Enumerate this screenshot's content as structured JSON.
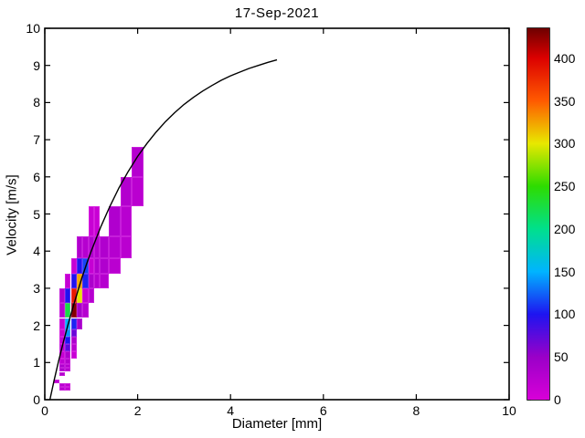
{
  "chart_data": {
    "type": "heatmap",
    "title": "17-Sep-2021",
    "xlabel": "Diameter [mm]",
    "ylabel": "Velocity [m/s]",
    "xlim": [
      0,
      10
    ],
    "ylim": [
      0,
      10
    ],
    "x_ticks": [
      0,
      2,
      4,
      6,
      8,
      10
    ],
    "y_ticks": [
      0,
      1,
      2,
      3,
      4,
      5,
      6,
      7,
      8,
      9,
      10
    ],
    "grid": false,
    "legend": "none",
    "colorbar": {
      "position": "right",
      "min": 0,
      "max": 435,
      "ticks": [
        0,
        50,
        100,
        150,
        200,
        250,
        300,
        350,
        400
      ],
      "stops": [
        [
          0,
          "#d800d8"
        ],
        [
          50,
          "#9a00c8"
        ],
        [
          100,
          "#1e14f0"
        ],
        [
          150,
          "#00b4ff"
        ],
        [
          200,
          "#00e08c"
        ],
        [
          250,
          "#2edc00"
        ],
        [
          300,
          "#e8e800"
        ],
        [
          350,
          "#ff5a00"
        ],
        [
          400,
          "#dc0000"
        ],
        [
          435,
          "#6e0000"
        ]
      ]
    },
    "diameter_bin_edges": [
      0.062,
      0.187,
      0.312,
      0.437,
      0.562,
      0.687,
      0.812,
      0.937,
      1.062,
      1.187,
      1.375,
      1.625,
      1.875,
      2.125,
      2.375
    ],
    "velocity_bin_edges": [
      0.05,
      0.15,
      0.25,
      0.35,
      0.45,
      0.55,
      0.65,
      0.75,
      0.85,
      0.95,
      1.1,
      1.3,
      1.5,
      1.7,
      1.9,
      2.2,
      2.6,
      3.0,
      3.4,
      3.8,
      4.4,
      5.2,
      6.0,
      6.8
    ],
    "cells": [
      {
        "d": [
          0.187,
          0.312
        ],
        "v": [
          0.45,
          0.55
        ],
        "value": 22
      },
      {
        "d": [
          0.312,
          0.437
        ],
        "v": [
          0.25,
          0.35
        ],
        "value": 25
      },
      {
        "d": [
          0.437,
          0.562
        ],
        "v": [
          0.25,
          0.35
        ],
        "value": 20
      },
      {
        "d": [
          0.312,
          0.437
        ],
        "v": [
          0.35,
          0.45
        ],
        "value": 25
      },
      {
        "d": [
          0.437,
          0.562
        ],
        "v": [
          0.35,
          0.45
        ],
        "value": 20
      },
      {
        "d": [
          0.312,
          0.437
        ],
        "v": [
          0.65,
          0.75
        ],
        "value": 30
      },
      {
        "d": [
          0.312,
          0.437
        ],
        "v": [
          0.75,
          0.85
        ],
        "value": 35
      },
      {
        "d": [
          0.437,
          0.562
        ],
        "v": [
          0.75,
          0.85
        ],
        "value": 28
      },
      {
        "d": [
          0.312,
          0.437
        ],
        "v": [
          0.85,
          0.95
        ],
        "value": 35
      },
      {
        "d": [
          0.437,
          0.562
        ],
        "v": [
          0.85,
          0.95
        ],
        "value": 28
      },
      {
        "d": [
          0.312,
          0.437
        ],
        "v": [
          0.95,
          1.1
        ],
        "value": 20
      },
      {
        "d": [
          0.437,
          0.562
        ],
        "v": [
          0.95,
          1.1
        ],
        "value": 30
      },
      {
        "d": [
          0.312,
          0.437
        ],
        "v": [
          1.1,
          1.3
        ],
        "value": 15
      },
      {
        "d": [
          0.437,
          0.562
        ],
        "v": [
          1.1,
          1.3
        ],
        "value": 35
      },
      {
        "d": [
          0.562,
          0.687
        ],
        "v": [
          1.1,
          1.3
        ],
        "value": 14
      },
      {
        "d": [
          0.312,
          0.437
        ],
        "v": [
          1.3,
          1.5
        ],
        "value": 30
      },
      {
        "d": [
          0.437,
          0.562
        ],
        "v": [
          1.3,
          1.5
        ],
        "value": 75
      },
      {
        "d": [
          0.562,
          0.687
        ],
        "v": [
          1.3,
          1.5
        ],
        "value": 25
      },
      {
        "d": [
          0.312,
          0.437
        ],
        "v": [
          1.5,
          1.7
        ],
        "value": 15
      },
      {
        "d": [
          0.437,
          0.562
        ],
        "v": [
          1.5,
          1.7
        ],
        "value": 100
      },
      {
        "d": [
          0.562,
          0.687
        ],
        "v": [
          1.5,
          1.7
        ],
        "value": 35
      },
      {
        "d": [
          0.312,
          0.437
        ],
        "v": [
          1.7,
          1.9
        ],
        "value": 14
      },
      {
        "d": [
          0.437,
          0.562
        ],
        "v": [
          1.7,
          1.9
        ],
        "value": 140
      },
      {
        "d": [
          0.562,
          0.687
        ],
        "v": [
          1.7,
          1.9
        ],
        "value": 70
      },
      {
        "d": [
          0.312,
          0.437
        ],
        "v": [
          1.9,
          2.2
        ],
        "value": 15
      },
      {
        "d": [
          0.437,
          0.562
        ],
        "v": [
          1.9,
          2.2
        ],
        "value": 150
      },
      {
        "d": [
          0.562,
          0.687
        ],
        "v": [
          1.9,
          2.2
        ],
        "value": 105
      },
      {
        "d": [
          0.687,
          0.812
        ],
        "v": [
          1.9,
          2.2
        ],
        "value": 40
      },
      {
        "d": [
          0.312,
          0.437
        ],
        "v": [
          2.2,
          2.6
        ],
        "value": 25
      },
      {
        "d": [
          0.437,
          0.562
        ],
        "v": [
          2.2,
          2.6
        ],
        "value": 225
      },
      {
        "d": [
          0.562,
          0.687
        ],
        "v": [
          2.2,
          2.6
        ],
        "value": 428
      },
      {
        "d": [
          0.687,
          0.812
        ],
        "v": [
          2.2,
          2.6
        ],
        "value": 40
      },
      {
        "d": [
          0.812,
          0.937
        ],
        "v": [
          2.2,
          2.6
        ],
        "value": 28
      },
      {
        "d": [
          0.312,
          0.437
        ],
        "v": [
          2.6,
          3.0
        ],
        "value": 35
      },
      {
        "d": [
          0.437,
          0.562
        ],
        "v": [
          2.6,
          3.0
        ],
        "value": 100
      },
      {
        "d": [
          0.562,
          0.687
        ],
        "v": [
          2.6,
          3.0
        ],
        "value": 385
      },
      {
        "d": [
          0.687,
          0.812
        ],
        "v": [
          2.6,
          3.0
        ],
        "value": 298
      },
      {
        "d": [
          0.812,
          0.937
        ],
        "v": [
          2.6,
          3.0
        ],
        "value": 16
      },
      {
        "d": [
          0.937,
          1.062
        ],
        "v": [
          2.6,
          3.0
        ],
        "value": 28
      },
      {
        "d": [
          0.437,
          0.562
        ],
        "v": [
          3.0,
          3.4
        ],
        "value": 16
      },
      {
        "d": [
          0.562,
          0.687
        ],
        "v": [
          3.0,
          3.4
        ],
        "value": 100
      },
      {
        "d": [
          0.687,
          0.812
        ],
        "v": [
          3.0,
          3.4
        ],
        "value": 322
      },
      {
        "d": [
          0.812,
          0.937
        ],
        "v": [
          3.0,
          3.4
        ],
        "value": 105
      },
      {
        "d": [
          0.937,
          1.062
        ],
        "v": [
          3.0,
          3.4
        ],
        "value": 35
      },
      {
        "d": [
          1.062,
          1.187
        ],
        "v": [
          3.0,
          3.4
        ],
        "value": 28
      },
      {
        "d": [
          1.187,
          1.375
        ],
        "v": [
          3.0,
          3.4
        ],
        "value": 28
      },
      {
        "d": [
          0.562,
          0.687
        ],
        "v": [
          3.4,
          3.8
        ],
        "value": 15
      },
      {
        "d": [
          0.687,
          0.812
        ],
        "v": [
          3.4,
          3.8
        ],
        "value": 100
      },
      {
        "d": [
          0.812,
          0.937
        ],
        "v": [
          3.4,
          3.8
        ],
        "value": 115
      },
      {
        "d": [
          0.937,
          1.062
        ],
        "v": [
          3.4,
          3.8
        ],
        "value": 15
      },
      {
        "d": [
          1.062,
          1.187
        ],
        "v": [
          3.4,
          3.8
        ],
        "value": 32
      },
      {
        "d": [
          1.187,
          1.375
        ],
        "v": [
          3.4,
          3.8
        ],
        "value": 32
      },
      {
        "d": [
          1.375,
          1.625
        ],
        "v": [
          3.4,
          3.8
        ],
        "value": 24
      },
      {
        "d": [
          0.687,
          0.812
        ],
        "v": [
          3.8,
          4.4
        ],
        "value": 32
      },
      {
        "d": [
          0.812,
          0.937
        ],
        "v": [
          3.8,
          4.4
        ],
        "value": 28
      },
      {
        "d": [
          0.937,
          1.062
        ],
        "v": [
          3.8,
          4.4
        ],
        "value": 32
      },
      {
        "d": [
          1.062,
          1.187
        ],
        "v": [
          3.8,
          4.4
        ],
        "value": 28
      },
      {
        "d": [
          1.187,
          1.375
        ],
        "v": [
          3.8,
          4.4
        ],
        "value": 32
      },
      {
        "d": [
          1.375,
          1.625
        ],
        "v": [
          3.8,
          4.4
        ],
        "value": 28
      },
      {
        "d": [
          1.625,
          1.875
        ],
        "v": [
          3.8,
          4.4
        ],
        "value": 24
      },
      {
        "d": [
          0.937,
          1.062
        ],
        "v": [
          4.4,
          5.2
        ],
        "value": 13
      },
      {
        "d": [
          1.062,
          1.187
        ],
        "v": [
          4.4,
          5.2
        ],
        "value": 13
      },
      {
        "d": [
          1.375,
          1.625
        ],
        "v": [
          4.4,
          5.2
        ],
        "value": 32
      },
      {
        "d": [
          1.625,
          1.875
        ],
        "v": [
          4.4,
          5.2
        ],
        "value": 26
      },
      {
        "d": [
          1.625,
          1.875
        ],
        "v": [
          5.2,
          6.0
        ],
        "value": 30
      },
      {
        "d": [
          1.875,
          2.125
        ],
        "v": [
          5.2,
          6.0
        ],
        "value": 24
      },
      {
        "d": [
          1.875,
          2.125
        ],
        "v": [
          6.0,
          6.8
        ],
        "value": 28
      }
    ],
    "curve": {
      "name": "terminal-velocity-curve",
      "color": "#000000",
      "points": [
        [
          0.11,
          0.0
        ],
        [
          0.2,
          0.52
        ],
        [
          0.3,
          1.05
        ],
        [
          0.4,
          1.55
        ],
        [
          0.5,
          2.02
        ],
        [
          0.6,
          2.46
        ],
        [
          0.7,
          2.88
        ],
        [
          0.8,
          3.28
        ],
        [
          0.9,
          3.65
        ],
        [
          1.0,
          4.0
        ],
        [
          1.2,
          4.64
        ],
        [
          1.4,
          5.2
        ],
        [
          1.6,
          5.71
        ],
        [
          1.8,
          6.15
        ],
        [
          2.0,
          6.55
        ],
        [
          2.2,
          6.9
        ],
        [
          2.4,
          7.21
        ],
        [
          2.6,
          7.49
        ],
        [
          2.8,
          7.73
        ],
        [
          3.0,
          7.95
        ],
        [
          3.2,
          8.14
        ],
        [
          3.4,
          8.31
        ],
        [
          3.6,
          8.46
        ],
        [
          3.8,
          8.6
        ],
        [
          4.0,
          8.72
        ],
        [
          4.2,
          8.82
        ],
        [
          4.4,
          8.92
        ],
        [
          4.6,
          9.0
        ],
        [
          4.8,
          9.08
        ],
        [
          5.0,
          9.15
        ]
      ]
    }
  }
}
